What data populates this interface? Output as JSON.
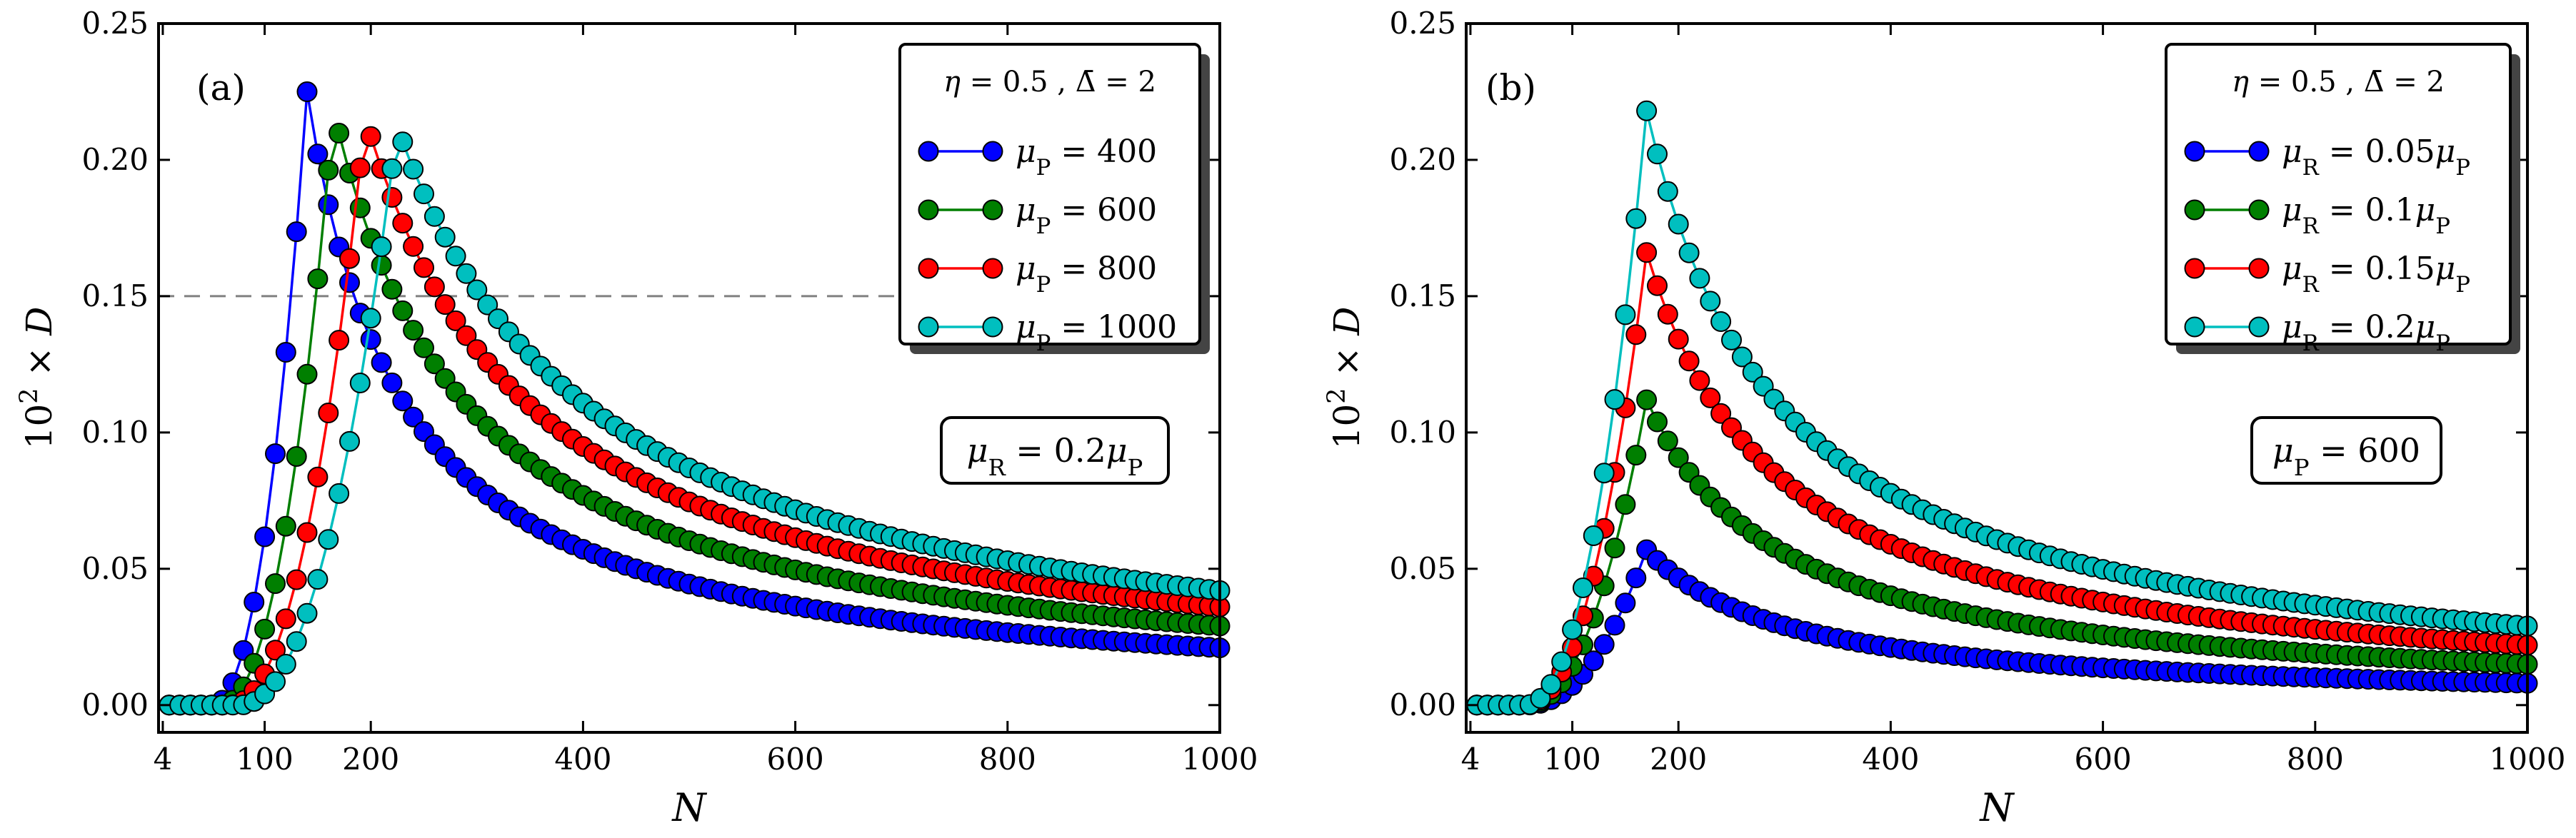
{
  "chart_data": [
    {
      "type": "line",
      "panel_label": "(a)",
      "xlabel": "N",
      "ylabel": "10² × D",
      "xlim": [
        0,
        1000
      ],
      "ylim": [
        -0.01,
        0.25
      ],
      "x_ticks": [
        4,
        100,
        200,
        400,
        600,
        800,
        1000
      ],
      "y_ticks": [
        0.0,
        0.05,
        0.1,
        0.15,
        0.2,
        0.25
      ],
      "y_tick_labels": [
        "0.00",
        "0.05",
        "0.10",
        "0.15",
        "0.20",
        "0.25"
      ],
      "reference_line_y": 0.15,
      "legend": {
        "title": "η = 0.5 , Δ̄ = 2",
        "placement": "top-right",
        "entries": [
          "μP = 400",
          "μP = 600",
          "μP = 800",
          "μP = 1000"
        ]
      },
      "annotation_box": "μR = 0.2μP",
      "series": [
        {
          "name": "μP = 400",
          "color": "#0000ff",
          "peak_x": 140,
          "peak_y": 0.225,
          "tail_y": 0.021,
          "onset_x": 50
        },
        {
          "name": "μP = 600",
          "color": "#007f00",
          "peak_x": 165,
          "peak_y": 0.218,
          "tail_y": 0.029,
          "onset_x": 58
        },
        {
          "name": "μP = 800",
          "color": "#ff0000",
          "peak_x": 195,
          "peak_y": 0.215,
          "tail_y": 0.036,
          "onset_x": 66
        },
        {
          "name": "μP = 1000",
          "color": "#00bfbf",
          "peak_x": 225,
          "peak_y": 0.212,
          "tail_y": 0.042,
          "onset_x": 75
        }
      ]
    },
    {
      "type": "line",
      "panel_label": "(b)",
      "xlabel": "N",
      "ylabel": "10² × D",
      "xlim": [
        0,
        1000
      ],
      "ylim": [
        -0.01,
        0.25
      ],
      "x_ticks": [
        4,
        100,
        200,
        400,
        600,
        800,
        1000
      ],
      "y_ticks": [
        0.0,
        0.05,
        0.1,
        0.15,
        0.2,
        0.25
      ],
      "y_tick_labels": [
        "0.00",
        "0.05",
        "0.10",
        "0.15",
        "0.20",
        "0.25"
      ],
      "reference_line_y": null,
      "legend": {
        "title": "η = 0.5 , Δ̄ = 2",
        "placement": "top-right",
        "entries": [
          "μR = 0.05μP",
          "μR = 0.1μP",
          "μR = 0.15μP",
          "μR = 0.2μP"
        ]
      },
      "annotation_box": "μP = 600",
      "series": [
        {
          "name": "μR = 0.05μP",
          "color": "#0000ff",
          "peak_x": 170,
          "peak_y": 0.057,
          "tail_y": 0.008,
          "onset_x": 55
        },
        {
          "name": "μR = 0.1μP",
          "color": "#007f00",
          "peak_x": 170,
          "peak_y": 0.112,
          "tail_y": 0.015,
          "onset_x": 55
        },
        {
          "name": "μR = 0.15μP",
          "color": "#ff0000",
          "peak_x": 170,
          "peak_y": 0.166,
          "tail_y": 0.022,
          "onset_x": 55
        },
        {
          "name": "μR = 0.2μP",
          "color": "#00bfbf",
          "peak_x": 170,
          "peak_y": 0.218,
          "tail_y": 0.029,
          "onset_x": 55
        }
      ]
    }
  ]
}
